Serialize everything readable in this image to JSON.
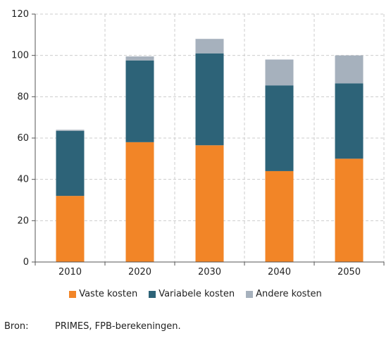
{
  "chart_data": {
    "type": "bar",
    "stacked": true,
    "categories": [
      "2010",
      "2020",
      "2030",
      "2040",
      "2050"
    ],
    "series": [
      {
        "name": "Vaste kosten",
        "color": "#F28527",
        "values": [
          32,
          58,
          56.5,
          44,
          50
        ]
      },
      {
        "name": "Variabele kosten",
        "color": "#2D6378",
        "values": [
          31.5,
          39.5,
          44.5,
          41.5,
          36.5
        ]
      },
      {
        "name": "Andere kosten",
        "color": "#A6B1BD",
        "values": [
          0.5,
          2,
          7,
          12.5,
          13.5
        ]
      }
    ],
    "ylim": [
      0,
      120
    ],
    "yticks": [
      0,
      20,
      40,
      60,
      80,
      100,
      120
    ],
    "grid": true,
    "legend_position": "bottom"
  },
  "source": {
    "label": "Bron:",
    "text": "PRIMES, FPB-berekeningen."
  }
}
